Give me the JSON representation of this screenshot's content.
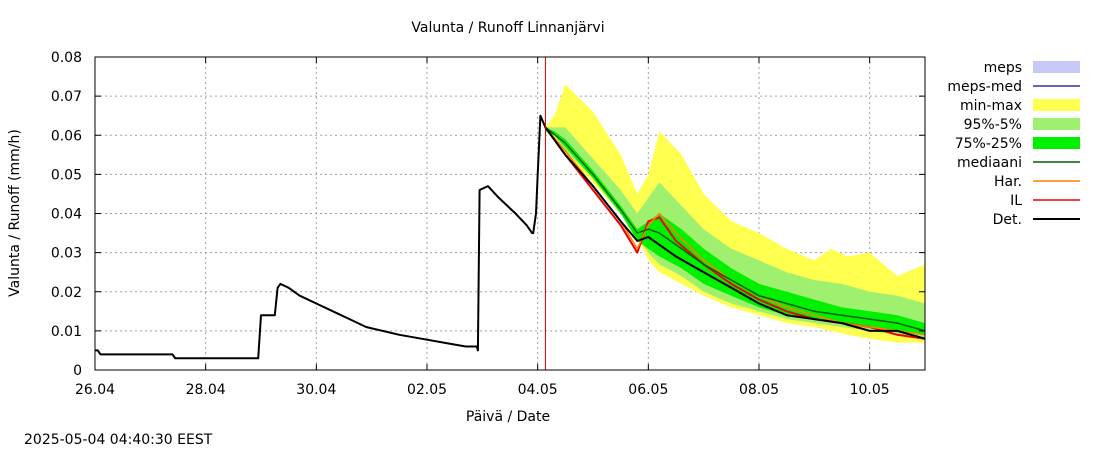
{
  "chart_data": {
    "type": "line",
    "title": "Valunta / Runoff  Linnanjärvi",
    "xlabel": "Päivä / Date",
    "ylabel": "Valunta / Runoff (mm/h)",
    "timestamp": "2025-05-04 04:40:30 EEST",
    "x_unit": "days since 26.04",
    "xlim": [
      0,
      15
    ],
    "ylim": [
      0,
      0.08
    ],
    "grid": true,
    "legend_position": "right",
    "x_ticks": [
      {
        "x": 0,
        "label": "26.04"
      },
      {
        "x": 2,
        "label": "28.04"
      },
      {
        "x": 4,
        "label": "30.04"
      },
      {
        "x": 6,
        "label": "02.05"
      },
      {
        "x": 8,
        "label": "04.05"
      },
      {
        "x": 10,
        "label": "06.05"
      },
      {
        "x": 12,
        "label": "08.05"
      },
      {
        "x": 14,
        "label": "10.05"
      }
    ],
    "y_ticks": [
      {
        "y": 0,
        "label": "0"
      },
      {
        "y": 0.01,
        "label": "0.01"
      },
      {
        "y": 0.02,
        "label": "0.02"
      },
      {
        "y": 0.03,
        "label": "0.03"
      },
      {
        "y": 0.04,
        "label": "0.04"
      },
      {
        "y": 0.05,
        "label": "0.05"
      },
      {
        "y": 0.06,
        "label": "0.06"
      },
      {
        "y": 0.07,
        "label": "0.07"
      },
      {
        "y": 0.08,
        "label": "0.08"
      }
    ],
    "forecast_start": 8.14,
    "forecast_line_color": "#cc0000",
    "legend": [
      {
        "label": "meps",
        "color": "#c8c8f8",
        "kind": "box"
      },
      {
        "label": "meps-med",
        "color": "#3030a0",
        "kind": "line"
      },
      {
        "label": "min-max",
        "color": "#ffff50",
        "kind": "box"
      },
      {
        "label": "95%-5%",
        "color": "#a0f070",
        "kind": "box"
      },
      {
        "label": "75%-25%",
        "color": "#00f000",
        "kind": "box"
      },
      {
        "label": "mediaani",
        "color": "#006000",
        "kind": "line"
      },
      {
        "label": "Har.",
        "color": "#ff8000",
        "kind": "line"
      },
      {
        "label": "IL",
        "color": "#ee0000",
        "kind": "line"
      },
      {
        "label": "Det.",
        "color": "#000000",
        "kind": "line"
      }
    ],
    "bands": [
      {
        "name": "min-max",
        "color": "#ffff50",
        "x": [
          8.14,
          8.3,
          8.5,
          9.0,
          9.5,
          9.8,
          10.0,
          10.2,
          10.6,
          11.0,
          11.5,
          12.0,
          12.5,
          13.0,
          13.3,
          13.6,
          14.0,
          14.5,
          15.0
        ],
        "upper": [
          0.062,
          0.065,
          0.073,
          0.066,
          0.055,
          0.045,
          0.05,
          0.061,
          0.055,
          0.045,
          0.038,
          0.035,
          0.031,
          0.028,
          0.031,
          0.029,
          0.03,
          0.024,
          0.027
        ],
        "lower": [
          0.061,
          0.059,
          0.055,
          0.048,
          0.04,
          0.034,
          0.028,
          0.025,
          0.022,
          0.019,
          0.016,
          0.014,
          0.012,
          0.011,
          0.01,
          0.009,
          0.008,
          0.007,
          0.007
        ]
      },
      {
        "name": "95%-5%",
        "color": "#a0f070",
        "x": [
          8.14,
          8.3,
          8.5,
          9.0,
          9.5,
          9.8,
          10.0,
          10.2,
          10.6,
          11.0,
          11.5,
          12.0,
          12.5,
          13.0,
          13.5,
          14.0,
          14.5,
          15.0
        ],
        "upper": [
          0.062,
          0.062,
          0.062,
          0.054,
          0.046,
          0.04,
          0.044,
          0.048,
          0.042,
          0.036,
          0.031,
          0.028,
          0.025,
          0.023,
          0.022,
          0.02,
          0.019,
          0.017
        ],
        "lower": [
          0.061,
          0.06,
          0.056,
          0.049,
          0.04,
          0.034,
          0.03,
          0.027,
          0.024,
          0.02,
          0.017,
          0.015,
          0.013,
          0.012,
          0.011,
          0.01,
          0.009,
          0.008
        ]
      },
      {
        "name": "75%-25%",
        "color": "#00f000",
        "x": [
          8.14,
          8.3,
          8.5,
          9.0,
          9.5,
          9.8,
          10.0,
          10.2,
          10.6,
          11.0,
          11.5,
          12.0,
          12.5,
          13.0,
          13.5,
          14.0,
          14.5,
          15.0
        ],
        "upper": [
          0.062,
          0.061,
          0.059,
          0.051,
          0.042,
          0.036,
          0.038,
          0.04,
          0.036,
          0.031,
          0.026,
          0.022,
          0.02,
          0.018,
          0.016,
          0.015,
          0.014,
          0.012
        ],
        "lower": [
          0.061,
          0.06,
          0.057,
          0.049,
          0.04,
          0.033,
          0.031,
          0.029,
          0.026,
          0.022,
          0.019,
          0.016,
          0.014,
          0.013,
          0.012,
          0.011,
          0.01,
          0.009
        ]
      }
    ],
    "series": [
      {
        "name": "Det.",
        "color": "#000000",
        "width": 2,
        "x": [
          0.0,
          0.05,
          0.1,
          1.4,
          1.45,
          2.95,
          3.0,
          3.1,
          3.25,
          3.3,
          3.35,
          3.5,
          3.7,
          4.0,
          4.3,
          4.6,
          4.9,
          5.2,
          5.5,
          5.9,
          6.3,
          6.7,
          6.9,
          6.92,
          6.95,
          7.1,
          7.3,
          7.6,
          7.8,
          7.9,
          7.92,
          7.97,
          8.0,
          8.05,
          8.14,
          8.5,
          9.0,
          9.5,
          9.8,
          10.0,
          10.2,
          10.5,
          11.0,
          11.5,
          12.0,
          12.5,
          13.0,
          13.5,
          14.0,
          14.5,
          15.0
        ],
        "y": [
          0.005,
          0.005,
          0.004,
          0.004,
          0.003,
          0.003,
          0.014,
          0.014,
          0.014,
          0.021,
          0.022,
          0.021,
          0.019,
          0.017,
          0.015,
          0.013,
          0.011,
          0.01,
          0.009,
          0.008,
          0.007,
          0.006,
          0.006,
          0.005,
          0.046,
          0.047,
          0.044,
          0.04,
          0.037,
          0.035,
          0.035,
          0.04,
          0.05,
          0.065,
          0.062,
          0.055,
          0.047,
          0.038,
          0.033,
          0.034,
          0.032,
          0.029,
          0.025,
          0.021,
          0.017,
          0.014,
          0.013,
          0.012,
          0.01,
          0.01,
          0.008
        ]
      },
      {
        "name": "IL",
        "color": "#ee0000",
        "width": 2,
        "x": [
          8.14,
          8.5,
          9.0,
          9.5,
          9.8,
          10.0,
          10.2,
          10.5,
          11.0,
          11.5,
          12.0,
          12.5,
          13.0,
          13.5,
          14.0,
          14.5,
          15.0
        ],
        "y": [
          0.062,
          0.055,
          0.046,
          0.037,
          0.03,
          0.038,
          0.039,
          0.033,
          0.027,
          0.022,
          0.018,
          0.015,
          0.013,
          0.012,
          0.011,
          0.009,
          0.008
        ]
      },
      {
        "name": "Har.",
        "color": "#ff8000",
        "width": 1.5,
        "x": [
          8.14,
          8.5,
          9.0,
          9.5,
          9.8,
          10.0,
          10.2,
          10.5,
          11.0,
          11.5,
          12.0,
          12.5,
          13.0,
          13.5,
          14.0,
          14.5,
          15.0
        ],
        "y": [
          0.062,
          0.056,
          0.047,
          0.038,
          0.031,
          0.037,
          0.04,
          0.035,
          0.028,
          0.023,
          0.019,
          0.016,
          0.014,
          0.012,
          0.011,
          0.01,
          0.009
        ]
      },
      {
        "name": "mediaani",
        "color": "#006000",
        "width": 1.5,
        "x": [
          8.14,
          8.5,
          9.0,
          9.5,
          9.8,
          10.0,
          10.2,
          10.5,
          11.0,
          11.5,
          12.0,
          12.5,
          13.0,
          13.5,
          14.0,
          14.5,
          15.0
        ],
        "y": [
          0.062,
          0.058,
          0.05,
          0.041,
          0.035,
          0.036,
          0.035,
          0.032,
          0.027,
          0.023,
          0.019,
          0.017,
          0.015,
          0.014,
          0.013,
          0.012,
          0.01
        ]
      }
    ]
  }
}
